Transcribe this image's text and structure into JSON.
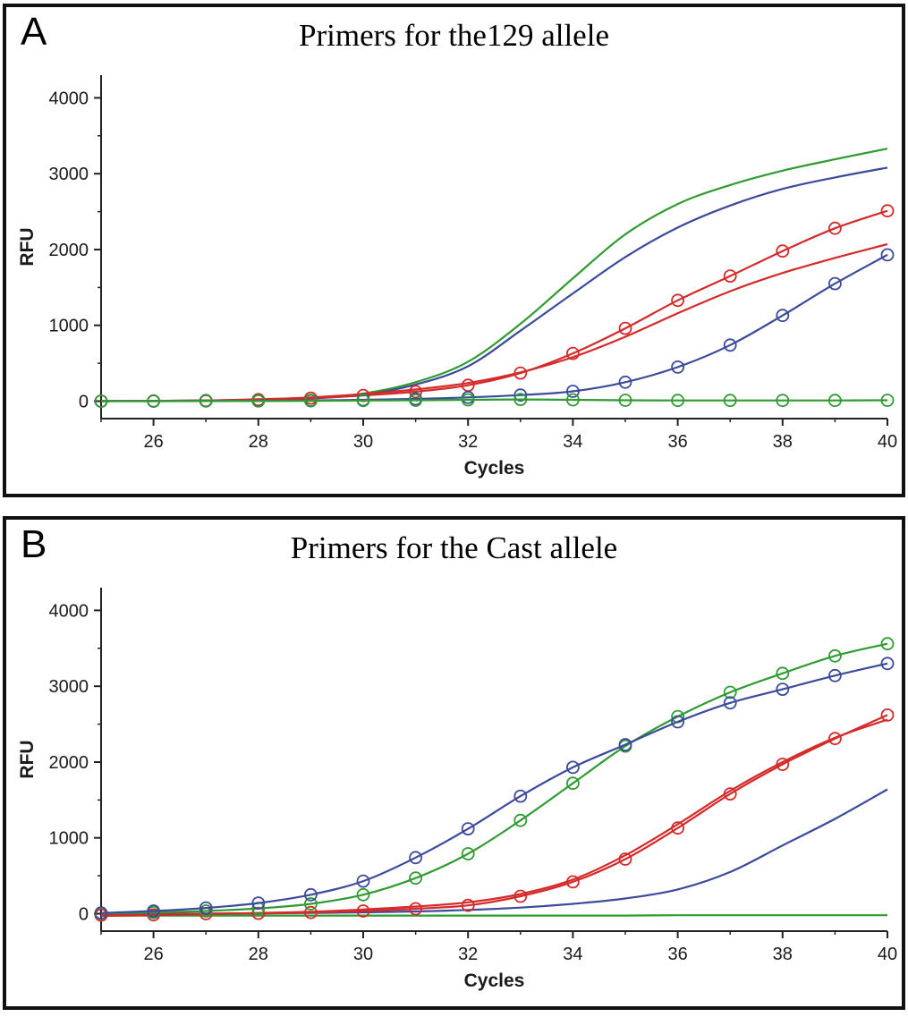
{
  "colors": {
    "green": "#2f9b31",
    "blue": "#3b4a9b",
    "red": "#d42a2a",
    "axis": "#222222"
  },
  "chart_data": [
    {
      "panel_label": "A",
      "title": "Primers for the129 allele",
      "type": "line",
      "xlabel": "Cycles",
      "ylabel": "RFU",
      "xlim": [
        25,
        40
      ],
      "ylim": [
        -230,
        4300
      ],
      "x": [
        25,
        26,
        27,
        28,
        29,
        30,
        31,
        32,
        33,
        34,
        35,
        36,
        37,
        38,
        39,
        40
      ],
      "xticks_major": [
        26,
        28,
        30,
        32,
        34,
        36,
        38,
        40
      ],
      "xticks_minor": [
        25,
        27,
        29,
        31,
        33,
        35,
        37,
        39
      ],
      "yticks_major": [
        0,
        1000,
        2000,
        3000,
        4000
      ],
      "yticks_minor": [
        500,
        1500,
        2500,
        3500
      ],
      "grid": false,
      "legend": "none",
      "series": [
        {
          "name": "green-line",
          "color": "green",
          "markers": false,
          "values": [
            2,
            5,
            10,
            18,
            40,
            100,
            250,
            520,
            1020,
            1620,
            2200,
            2600,
            2850,
            3040,
            3190,
            3330
          ]
        },
        {
          "name": "blue-line",
          "color": "blue",
          "markers": false,
          "values": [
            0,
            3,
            8,
            15,
            35,
            85,
            220,
            460,
            930,
            1420,
            1900,
            2290,
            2580,
            2800,
            2950,
            3080
          ]
        },
        {
          "name": "red-line",
          "color": "red",
          "markers": false,
          "values": [
            0,
            3,
            10,
            25,
            50,
            95,
            155,
            240,
            380,
            580,
            850,
            1160,
            1450,
            1690,
            1890,
            2070
          ]
        },
        {
          "name": "red-circles",
          "color": "red",
          "markers": true,
          "values": [
            0,
            2,
            8,
            20,
            40,
            75,
            125,
            210,
            370,
            630,
            960,
            1330,
            1650,
            1980,
            2280,
            2510
          ]
        },
        {
          "name": "blue-circles",
          "color": "blue",
          "markers": true,
          "values": [
            0,
            0,
            2,
            5,
            10,
            18,
            30,
            50,
            80,
            130,
            250,
            450,
            740,
            1130,
            1550,
            1930
          ]
        },
        {
          "name": "green-circles",
          "color": "green",
          "markers": true,
          "values": [
            0,
            2,
            3,
            2,
            5,
            8,
            12,
            18,
            22,
            18,
            12,
            10,
            10,
            10,
            10,
            12
          ]
        }
      ]
    },
    {
      "panel_label": "B",
      "title": "Primers for the Cast allele",
      "type": "line",
      "xlabel": "Cycles",
      "ylabel": "RFU",
      "xlim": [
        25,
        40
      ],
      "ylim": [
        -230,
        4300
      ],
      "x": [
        25,
        26,
        27,
        28,
        29,
        30,
        31,
        32,
        33,
        34,
        35,
        36,
        37,
        38,
        39,
        40
      ],
      "xticks_major": [
        26,
        28,
        30,
        32,
        34,
        36,
        38,
        40
      ],
      "xticks_minor": [
        25,
        27,
        29,
        31,
        33,
        35,
        37,
        39
      ],
      "yticks_major": [
        0,
        1000,
        2000,
        3000,
        4000
      ],
      "yticks_minor": [
        500,
        1500,
        2500,
        3500
      ],
      "grid": false,
      "legend": "none",
      "series": [
        {
          "name": "green-line",
          "color": "green",
          "markers": false,
          "values": [
            -25,
            -25,
            -25,
            -25,
            -25,
            -25,
            -25,
            -25,
            -25,
            -25,
            -25,
            -20,
            -20,
            -20,
            -20,
            -20
          ]
        },
        {
          "name": "blue-line",
          "color": "blue",
          "markers": false,
          "values": [
            0,
            0,
            2,
            5,
            10,
            18,
            30,
            50,
            80,
            130,
            200,
            320,
            550,
            900,
            1250,
            1640
          ]
        },
        {
          "name": "red-line",
          "color": "red",
          "markers": false,
          "values": [
            -30,
            -20,
            -5,
            10,
            25,
            55,
            95,
            150,
            260,
            450,
            770,
            1180,
            1620,
            2000,
            2320,
            2560
          ]
        },
        {
          "name": "red-circles",
          "color": "red",
          "markers": true,
          "values": [
            -20,
            -15,
            0,
            5,
            15,
            35,
            65,
            110,
            230,
            420,
            720,
            1130,
            1580,
            1970,
            2310,
            2620
          ]
        },
        {
          "name": "green-circles",
          "color": "green",
          "markers": true,
          "values": [
            5,
            15,
            35,
            70,
            130,
            250,
            470,
            790,
            1230,
            1720,
            2210,
            2600,
            2920,
            3170,
            3400,
            3560
          ]
        },
        {
          "name": "blue-circles",
          "color": "blue",
          "markers": true,
          "values": [
            10,
            35,
            75,
            140,
            250,
            430,
            740,
            1120,
            1550,
            1930,
            2230,
            2530,
            2780,
            2960,
            3140,
            3300
          ]
        }
      ]
    }
  ]
}
